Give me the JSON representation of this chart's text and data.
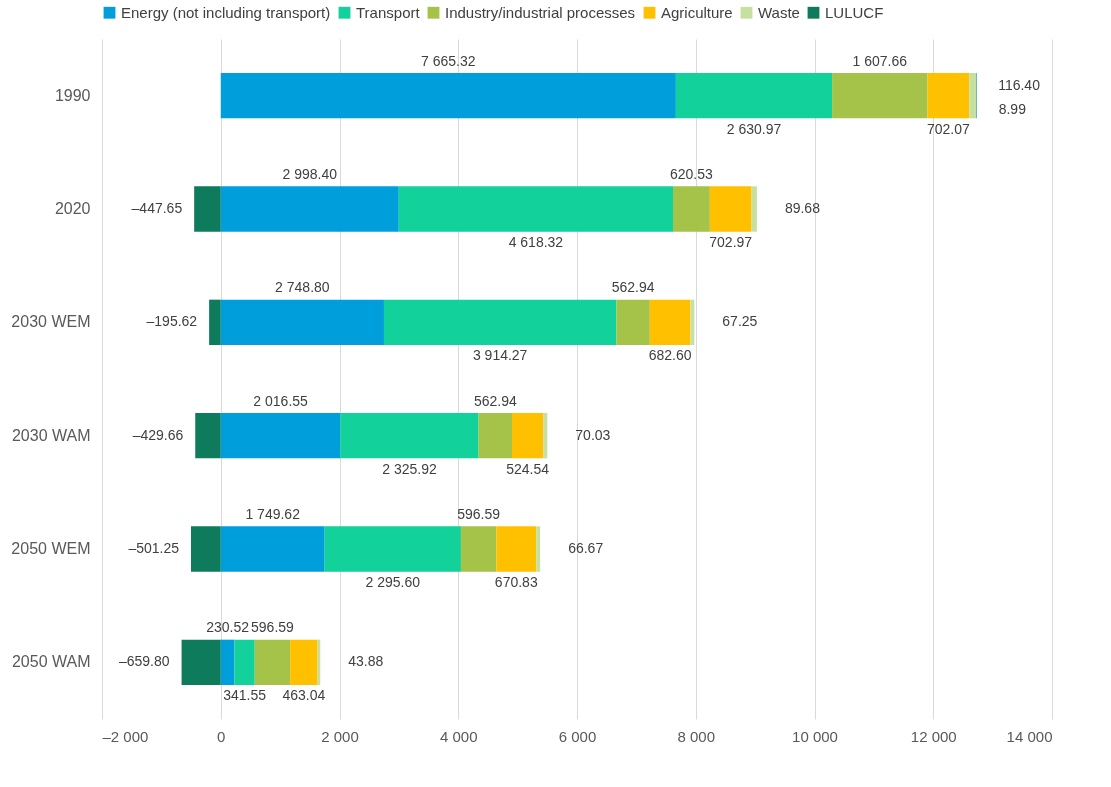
{
  "chart_data": {
    "type": "bar",
    "orientation": "horizontal",
    "stacked": true,
    "categories": [
      "1990",
      "2020",
      "2030 WEM",
      "2030 WAM",
      "2050 WEM",
      "2050 WAM"
    ],
    "series": [
      {
        "name": "Energy (not including transport)",
        "color": "#009fdb",
        "values": [
          7665.32,
          2998.4,
          2748.8,
          2016.55,
          1749.62,
          230.52
        ],
        "value_labels": [
          "7 665.32",
          "2 998.40",
          "2 748.80",
          "2 016.55",
          "1 749.62",
          "230.52"
        ]
      },
      {
        "name": "Transport",
        "color": "#12d19b",
        "values": [
          2630.97,
          4618.32,
          3914.27,
          2325.92,
          2295.6,
          341.55
        ],
        "value_labels": [
          "2 630.97",
          "4 618.32",
          "3 914.27",
          "2 325.92",
          "2 295.60",
          "341.55"
        ]
      },
      {
        "name": "Industry/industrial processes",
        "color": "#a5c249",
        "values": [
          1607.66,
          620.53,
          562.94,
          562.94,
          596.59,
          596.59
        ],
        "value_labels": [
          "1 607.66",
          "620.53",
          "562.94",
          "562.94",
          "596.59",
          "596.59"
        ]
      },
      {
        "name": "Agriculture",
        "color": "#ffc000",
        "values": [
          702.07,
          702.97,
          682.6,
          524.54,
          670.83,
          463.04
        ],
        "value_labels": [
          "702.07",
          "702.97",
          "682.60",
          "524.54",
          "670.83",
          "463.04"
        ]
      },
      {
        "name": "Waste",
        "color": "#c5e0a0",
        "values": [
          116.4,
          89.68,
          67.25,
          70.03,
          66.67,
          43.88
        ],
        "value_labels": [
          "116.40",
          "89.68",
          "67.25",
          "70.03",
          "66.67",
          "43.88"
        ]
      },
      {
        "name": "LULUCF",
        "color": "#0f7b5d",
        "values": [
          8.99,
          -447.65,
          -195.62,
          -429.66,
          -501.25,
          -659.8
        ],
        "value_labels": [
          "8.99",
          "–447.65",
          "–195.62",
          "–429.66",
          "–501.25",
          "–659.80"
        ]
      }
    ],
    "xlim": [
      -2000,
      14000
    ],
    "xticks": [
      {
        "value": -2000,
        "label": "–2 000"
      },
      0,
      {
        "value": 2000,
        "label": "2 000"
      },
      {
        "value": 4000,
        "label": "4 000"
      },
      {
        "value": 6000,
        "label": "6 000"
      },
      {
        "value": 8000,
        "label": "8 000"
      },
      {
        "value": 10000,
        "label": "10 000"
      },
      {
        "value": 12000,
        "label": "12 000"
      },
      {
        "value": 14000,
        "label": "14 000"
      }
    ],
    "grid": "x",
    "legend": "top"
  }
}
